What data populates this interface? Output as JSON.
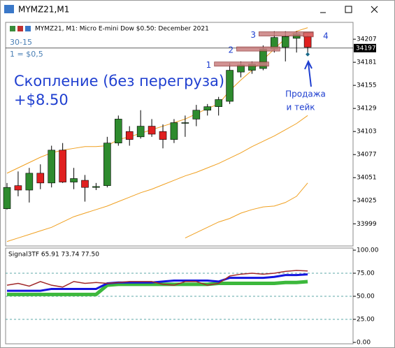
{
  "window": {
    "title": "MYMZ21,M1"
  },
  "chart_data": [
    {
      "type": "candlestick",
      "title": "MYMZ21, M1:  Micro E-mini Dow $0.50: December 2021",
      "open": [
        34016,
        34042,
        34037,
        34056,
        34045,
        34082,
        34046,
        34048,
        34040,
        34042,
        34090,
        34103,
        34097,
        34109,
        34103,
        34094,
        34113,
        34117,
        34127,
        34131,
        34137,
        34170,
        34172,
        34174,
        34196,
        34198,
        34208,
        34210
      ],
      "high": [
        34045,
        34058,
        34062,
        34066,
        34087,
        34090,
        34062,
        34054,
        34045,
        34097,
        34121,
        34109,
        34127,
        34117,
        34111,
        34117,
        34121,
        34133,
        34134,
        34142,
        34180,
        34182,
        34182,
        34200,
        34216,
        34216,
        34216,
        34213
      ],
      "low": [
        34015,
        34030,
        34023,
        34038,
        34040,
        34045,
        34038,
        34024,
        34037,
        34040,
        34087,
        34087,
        34095,
        34097,
        34084,
        34090,
        34097,
        34109,
        34121,
        34121,
        34134,
        34164,
        34168,
        34172,
        34192,
        34182,
        34192,
        34192
      ],
      "close": [
        34040,
        34037,
        34056,
        34045,
        34082,
        34046,
        34050,
        34040,
        34041,
        34090,
        34117,
        34094,
        34109,
        34100,
        34094,
        34113,
        34113,
        34127,
        34131,
        34139,
        34172,
        34178,
        34179,
        34196,
        34209,
        34210,
        34213,
        34198
      ],
      "up_color": "#2e8b2e",
      "down_color": "#e02020",
      "bands": [
        {
          "color": "#f0a020",
          "values": [
            34056,
            34062,
            34068,
            34074,
            34079,
            34082,
            34084,
            34086,
            34086,
            34087,
            34094,
            34097,
            34101,
            34105,
            34109,
            34113,
            34117,
            34123,
            34129,
            34134,
            34149,
            34161,
            34172,
            34184,
            34196,
            34208,
            34216,
            34220
          ]
        },
        {
          "color": "#f0a020",
          "values": [
            33979,
            33983,
            33987,
            33991,
            33995,
            34001,
            34007,
            34011,
            34015,
            34019,
            34024,
            34029,
            34034,
            34038,
            34043,
            34048,
            34053,
            34057,
            34062,
            34067,
            34073,
            34079,
            34086,
            34092,
            34098,
            34105,
            34112,
            34121
          ]
        },
        {
          "color": "#f0a020",
          "values": [
            null,
            null,
            null,
            null,
            null,
            null,
            null,
            null,
            null,
            null,
            null,
            null,
            null,
            null,
            null,
            null,
            33983,
            33989,
            33995,
            34001,
            34005,
            34011,
            34015,
            34018,
            34019,
            34023,
            34030,
            34045
          ]
        }
      ],
      "levels": [
        {
          "label": "1",
          "value": 34179,
          "x": [
            19,
            23
          ]
        },
        {
          "label": "2",
          "value": 34196,
          "x": [
            21,
            24
          ]
        },
        {
          "label": "3",
          "value": 34213,
          "x": [
            23,
            27
          ]
        },
        {
          "label": "4",
          "value": 34212,
          "x": [
            27,
            27
          ]
        }
      ],
      "signal": {
        "x": 27,
        "value": 34190
      },
      "current_price": 34197,
      "ylim": [
        33974,
        34226
      ],
      "yticks": [
        34207,
        34181,
        34155,
        34129,
        34103,
        34077,
        34051,
        34025,
        33999
      ],
      "notes": {
        "setup": "30-15",
        "point": "1 = $0,5",
        "headline": "Скопление (без перегруза)",
        "profit": "+$8.50",
        "action_1": "Продажа",
        "action_2": "и тейк"
      }
    },
    {
      "type": "line",
      "title": "Signal3TF 65.91 73.74 77.50",
      "series": [
        {
          "color": "#3cb83c",
          "values": [
            52,
            52,
            52,
            52,
            52,
            52,
            52,
            52,
            52,
            62,
            63,
            63,
            63,
            63,
            63,
            63,
            63,
            63,
            63,
            64,
            64,
            64,
            64,
            64,
            64,
            65,
            65,
            65.91
          ]
        },
        {
          "color": "#1414e0",
          "values": [
            56,
            56,
            56,
            56,
            58,
            58,
            58,
            58,
            58,
            64,
            65,
            65,
            65,
            65,
            66,
            67,
            67,
            67,
            67,
            66,
            70,
            70,
            70,
            70,
            71,
            73,
            73,
            73.74
          ]
        },
        {
          "color": "#a0282a",
          "values": [
            62,
            64,
            61,
            66,
            62,
            60,
            66,
            64,
            65,
            64,
            65,
            66,
            66,
            66,
            63,
            62,
            66,
            66,
            62,
            64,
            72,
            74,
            75,
            74,
            75,
            77,
            78,
            77.5
          ]
        }
      ],
      "ylim": [
        0,
        100
      ],
      "yticks": [
        {
          "value": 100,
          "label": "100.00"
        },
        {
          "value": 75,
          "label": "75.00"
        },
        {
          "value": 50,
          "label": "50.00"
        },
        {
          "value": 25,
          "label": "25.00"
        },
        {
          "value": 0,
          "label": "0.00"
        }
      ],
      "grid_ticks": [
        75,
        50,
        25
      ]
    }
  ]
}
